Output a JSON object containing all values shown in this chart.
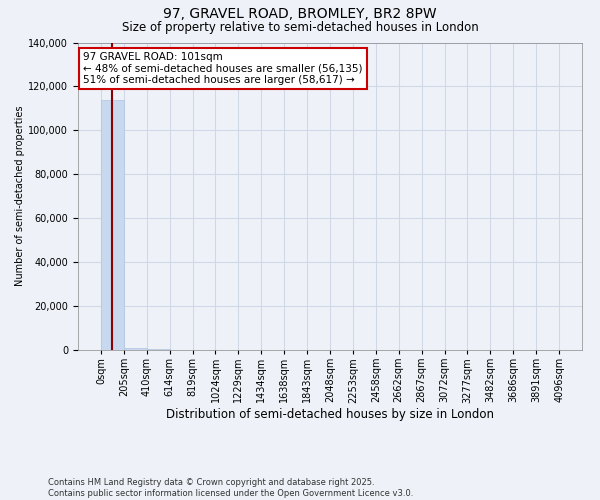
{
  "title_line1": "97, GRAVEL ROAD, BROMLEY, BR2 8PW",
  "title_line2": "Size of property relative to semi-detached houses in London",
  "xlabel": "Distribution of semi-detached houses by size in London",
  "ylabel": "Number of semi-detached properties",
  "annotation_line1": "97 GRAVEL ROAD: 101sqm",
  "annotation_line2": "← 48% of semi-detached houses are smaller (56,135)",
  "annotation_line3": "51% of semi-detached houses are larger (58,617) →",
  "property_size": 101,
  "bar_color": "#c8d8ee",
  "bar_edgecolor": "#b0c4de",
  "vline_color": "#8b0000",
  "annotation_box_edgecolor": "#cc0000",
  "annotation_box_facecolor": "white",
  "footer_line1": "Contains HM Land Registry data © Crown copyright and database right 2025.",
  "footer_line2": "Contains public sector information licensed under the Open Government Licence v3.0.",
  "bin_edges": [
    0,
    205,
    410,
    614,
    819,
    1024,
    1229,
    1434,
    1638,
    1843,
    2048,
    2253,
    2458,
    2662,
    2867,
    3072,
    3277,
    3482,
    3686,
    3891,
    4096
  ],
  "bin_counts": [
    114000,
    800,
    350,
    180,
    100,
    60,
    40,
    25,
    18,
    14,
    10,
    8,
    6,
    5,
    4,
    3,
    3,
    2,
    2,
    2
  ],
  "ylim": [
    0,
    140000
  ],
  "yticks": [
    0,
    20000,
    40000,
    60000,
    80000,
    100000,
    120000,
    140000
  ],
  "background_color": "#eef2f8",
  "grid_color": "#d0d8e8",
  "title_fontsize": 10,
  "subtitle_fontsize": 8.5,
  "tick_fontsize": 7,
  "ylabel_fontsize": 7
}
